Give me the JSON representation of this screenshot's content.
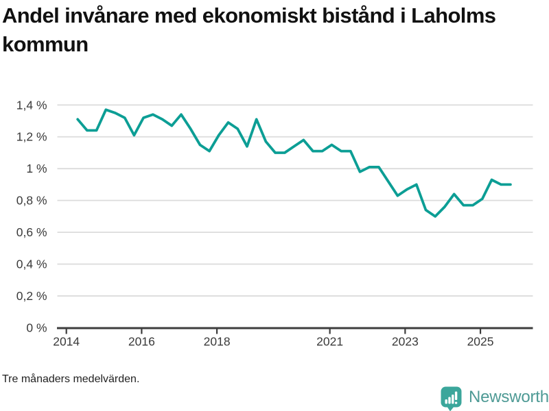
{
  "title": "Andel invånare med ekonomiskt bistånd i Laholms kommun",
  "footnote": "Tre månaders medelvärden.",
  "logo": {
    "text": "Newsworthy",
    "icon": "bar-chart-speech-bubble-icon",
    "icon_color": "#3ba69b",
    "text_color": "#4e9a95"
  },
  "colors": {
    "line": "#0c9e95",
    "grid": "#dcdcdc",
    "axis": "#3d3d3d",
    "tick_label": "#3a3a3a",
    "title": "#111111"
  },
  "chart_data": {
    "type": "line",
    "title": "Andel invånare med ekonomiskt bistånd i Laholms kommun",
    "note": "Tre månaders medelvärden.",
    "unit": "%",
    "decimal_style": "comma",
    "grid": "horizontal",
    "legend": "none",
    "x_axis": {
      "ticks": [
        2014,
        2016,
        2018,
        2021,
        2023,
        2025
      ],
      "range": [
        2013.8,
        2026.4
      ]
    },
    "y_axis": {
      "range": [
        0,
        1.45
      ],
      "ticks": [
        {
          "v": 0,
          "label": "0 %"
        },
        {
          "v": 0.2,
          "label": "0,2 %"
        },
        {
          "v": 0.4,
          "label": "0,4 %"
        },
        {
          "v": 0.6,
          "label": "0,6 %"
        },
        {
          "v": 0.8,
          "label": "0,8 %"
        },
        {
          "v": 1,
          "label": "1 %"
        },
        {
          "v": 1.2,
          "label": "1,2 %"
        },
        {
          "v": 1.4,
          "label": "1,4 %"
        }
      ]
    },
    "series": [
      {
        "name": "Andel invånare med ekonomiskt bistånd",
        "color": "#0c9e95",
        "points": [
          {
            "q": "2014K2",
            "x": 2014.3,
            "v": 1.31
          },
          {
            "q": "2014K3",
            "x": 2014.55,
            "v": 1.24
          },
          {
            "q": "2014K4",
            "x": 2014.8,
            "v": 1.24
          },
          {
            "q": "2015K1",
            "x": 2015.05,
            "v": 1.37
          },
          {
            "q": "2015K2",
            "x": 2015.3,
            "v": 1.35
          },
          {
            "q": "2015K3",
            "x": 2015.55,
            "v": 1.32
          },
          {
            "q": "2015K4",
            "x": 2015.8,
            "v": 1.21
          },
          {
            "q": "2016K1",
            "x": 2016.05,
            "v": 1.32
          },
          {
            "q": "2016K2",
            "x": 2016.3,
            "v": 1.34
          },
          {
            "q": "2016K3",
            "x": 2016.55,
            "v": 1.31
          },
          {
            "q": "2016K4",
            "x": 2016.8,
            "v": 1.27
          },
          {
            "q": "2017K1",
            "x": 2017.05,
            "v": 1.34
          },
          {
            "q": "2017K2",
            "x": 2017.3,
            "v": 1.25
          },
          {
            "q": "2017K3",
            "x": 2017.55,
            "v": 1.15
          },
          {
            "q": "2017K4",
            "x": 2017.8,
            "v": 1.11
          },
          {
            "q": "2018K1",
            "x": 2018.05,
            "v": 1.21
          },
          {
            "q": "2018K2",
            "x": 2018.3,
            "v": 1.29
          },
          {
            "q": "2018K3",
            "x": 2018.55,
            "v": 1.25
          },
          {
            "q": "2018K4",
            "x": 2018.8,
            "v": 1.14
          },
          {
            "q": "2019K1",
            "x": 2019.05,
            "v": 1.31
          },
          {
            "q": "2019K2",
            "x": 2019.3,
            "v": 1.17
          },
          {
            "q": "2019K3",
            "x": 2019.55,
            "v": 1.1
          },
          {
            "q": "2019K4",
            "x": 2019.8,
            "v": 1.1
          },
          {
            "q": "2020K1",
            "x": 2020.05,
            "v": 1.14
          },
          {
            "q": "2020K2",
            "x": 2020.3,
            "v": 1.18
          },
          {
            "q": "2020K3",
            "x": 2020.55,
            "v": 1.11
          },
          {
            "q": "2020K4",
            "x": 2020.8,
            "v": 1.11
          },
          {
            "q": "2021K1",
            "x": 2021.05,
            "v": 1.15
          },
          {
            "q": "2021K2",
            "x": 2021.3,
            "v": 1.11
          },
          {
            "q": "2021K3",
            "x": 2021.55,
            "v": 1.11
          },
          {
            "q": "2021K4",
            "x": 2021.8,
            "v": 0.98
          },
          {
            "q": "2022K1",
            "x": 2022.05,
            "v": 1.01
          },
          {
            "q": "2022K2",
            "x": 2022.3,
            "v": 1.01
          },
          {
            "q": "2022K3",
            "x": 2022.55,
            "v": 0.92
          },
          {
            "q": "2022K4",
            "x": 2022.8,
            "v": 0.83
          },
          {
            "q": "2023K1",
            "x": 2023.05,
            "v": 0.87
          },
          {
            "q": "2023K2",
            "x": 2023.3,
            "v": 0.9
          },
          {
            "q": "2023K3",
            "x": 2023.55,
            "v": 0.74
          },
          {
            "q": "2023K4",
            "x": 2023.8,
            "v": 0.7
          },
          {
            "q": "2024K1",
            "x": 2024.05,
            "v": 0.76
          },
          {
            "q": "2024K2",
            "x": 2024.3,
            "v": 0.84
          },
          {
            "q": "2024K3",
            "x": 2024.55,
            "v": 0.77
          },
          {
            "q": "2024K4",
            "x": 2024.8,
            "v": 0.77
          },
          {
            "q": "2025K1",
            "x": 2025.05,
            "v": 0.81
          },
          {
            "q": "2025K2",
            "x": 2025.3,
            "v": 0.93
          },
          {
            "q": "2025K3",
            "x": 2025.55,
            "v": 0.9
          },
          {
            "q": "2025K4",
            "x": 2025.8,
            "v": 0.9
          }
        ]
      }
    ]
  }
}
